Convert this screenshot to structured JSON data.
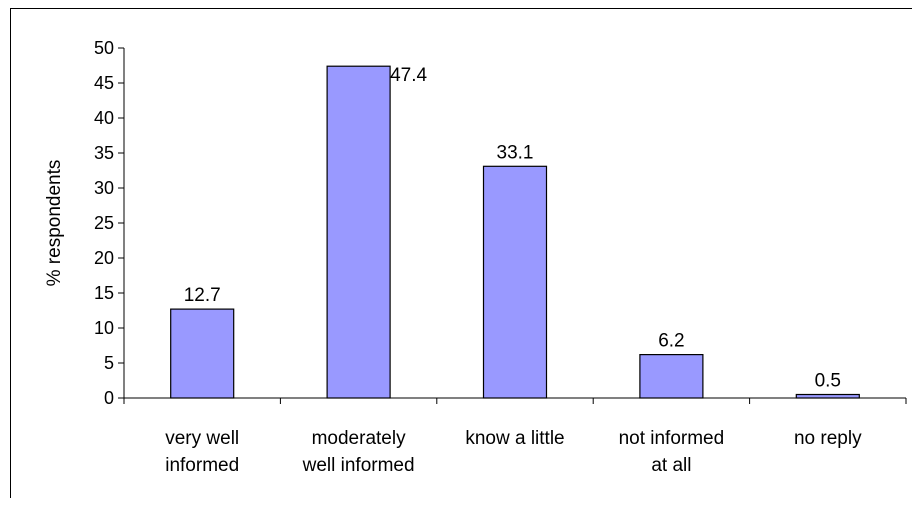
{
  "chart_data": {
    "type": "bar",
    "categories": [
      [
        "very well",
        "informed"
      ],
      [
        "moderately",
        "well informed"
      ],
      [
        "know a little"
      ],
      [
        "not informed",
        "at all"
      ],
      [
        "no reply"
      ]
    ],
    "values": [
      12.7,
      47.4,
      33.1,
      6.2,
      0.5
    ],
    "data_labels": [
      "12.7",
      "47.4",
      "33.1",
      "6.2",
      "0.5"
    ],
    "title": "",
    "xlabel": "",
    "ylabel": "% respondents",
    "ylim": [
      0,
      50
    ],
    "yticks": [
      0,
      5,
      10,
      15,
      20,
      25,
      30,
      35,
      40,
      45,
      50
    ],
    "grid": false,
    "legend": "none",
    "colors": {
      "bar_fill": "#9999FF",
      "bar_stroke": "#000000",
      "axis": "#000000"
    }
  }
}
